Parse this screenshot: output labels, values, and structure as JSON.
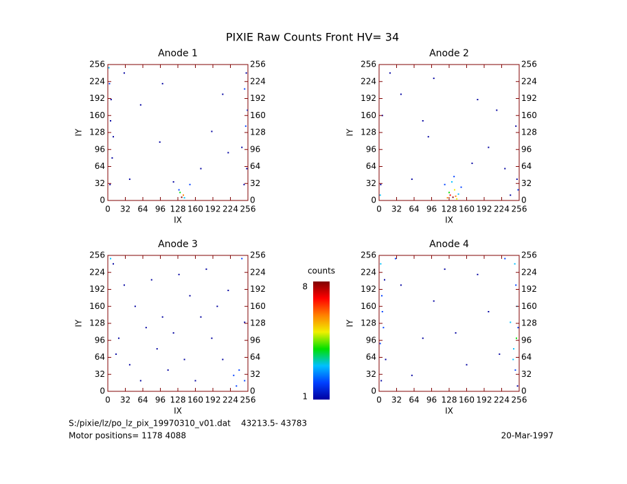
{
  "title": "PIXIE Raw Counts Front HV= 34",
  "chart_data": [
    {
      "type": "scatter",
      "title": "Anode 1",
      "xlabel": "IX",
      "ylabel": "IY",
      "xlim": [
        0,
        256
      ],
      "ylim": [
        0,
        256
      ],
      "xticks": [
        0,
        32,
        64,
        96,
        128,
        160,
        192,
        224,
        256
      ],
      "yticks": [
        0,
        32,
        64,
        96,
        128,
        160,
        192,
        224,
        256
      ],
      "x": [
        3,
        5,
        8,
        4,
        6,
        250,
        252,
        254,
        249,
        253,
        135,
        138,
        132,
        140,
        130,
        60,
        100,
        190,
        220,
        40,
        170,
        95,
        210,
        30,
        120,
        10,
        245,
        2,
        255,
        150
      ],
      "y": [
        220,
        150,
        80,
        30,
        190,
        210,
        140,
        60,
        30,
        240,
        6,
        10,
        15,
        5,
        20,
        180,
        220,
        130,
        90,
        40,
        60,
        110,
        200,
        240,
        35,
        120,
        100,
        250,
        170,
        30
      ],
      "values": [
        2,
        1,
        1,
        1,
        1,
        2,
        2,
        1,
        1,
        1,
        8,
        6,
        4,
        3,
        2,
        1,
        1,
        1,
        1,
        1,
        1,
        1,
        1,
        1,
        1,
        1,
        1,
        3,
        2,
        2
      ]
    },
    {
      "type": "scatter",
      "title": "Anode 2",
      "xlabel": "IX",
      "ylabel": "IY",
      "xlim": [
        0,
        256
      ],
      "ylim": [
        0,
        256
      ],
      "xticks": [
        0,
        32,
        64,
        96,
        128,
        160,
        192,
        224,
        256
      ],
      "yticks": [
        0,
        32,
        64,
        96,
        128,
        160,
        192,
        224,
        256
      ],
      "x": [
        3,
        6,
        252,
        250,
        135,
        130,
        140,
        138,
        128,
        145,
        133,
        150,
        120,
        40,
        80,
        200,
        230,
        100,
        60,
        180,
        20,
        240,
        170,
        90,
        215,
        137,
        125,
        142,
        2,
        254
      ],
      "y": [
        30,
        160,
        40,
        140,
        6,
        10,
        8,
        20,
        15,
        12,
        35,
        25,
        30,
        200,
        150,
        100,
        60,
        230,
        40,
        190,
        240,
        10,
        70,
        120,
        170,
        45,
        5,
        3,
        10,
        20
      ],
      "values": [
        1,
        1,
        1,
        1,
        8,
        7,
        6,
        5,
        4,
        3,
        3,
        2,
        2,
        1,
        1,
        1,
        1,
        1,
        1,
        1,
        1,
        1,
        1,
        1,
        1,
        2,
        6,
        5,
        3,
        2
      ]
    },
    {
      "type": "scatter",
      "title": "Anode 3",
      "xlabel": "IX",
      "ylabel": "IY",
      "xlim": [
        0,
        256
      ],
      "ylim": [
        0,
        256
      ],
      "xticks": [
        0,
        32,
        64,
        96,
        128,
        160,
        192,
        224,
        256
      ],
      "yticks": [
        0,
        32,
        64,
        96,
        128,
        160,
        192,
        224,
        256
      ],
      "x": [
        10,
        30,
        50,
        70,
        90,
        110,
        130,
        150,
        170,
        190,
        210,
        230,
        250,
        20,
        60,
        100,
        140,
        180,
        220,
        245,
        40,
        80,
        120,
        160,
        200,
        240,
        15,
        235,
        250,
        5
      ],
      "y": [
        240,
        200,
        160,
        120,
        80,
        40,
        220,
        180,
        140,
        100,
        60,
        30,
        20,
        100,
        20,
        140,
        60,
        230,
        190,
        250,
        50,
        210,
        110,
        20,
        160,
        40,
        70,
        10,
        130,
        250
      ],
      "values": [
        1,
        1,
        1,
        1,
        1,
        1,
        1,
        1,
        1,
        1,
        1,
        2,
        2,
        1,
        1,
        1,
        1,
        1,
        1,
        2,
        1,
        1,
        1,
        1,
        1,
        2,
        1,
        2,
        1,
        3
      ]
    },
    {
      "type": "scatter",
      "title": "Anode 4",
      "xlabel": "IX",
      "ylabel": "IY",
      "xlim": [
        0,
        256
      ],
      "ylim": [
        0,
        256
      ],
      "xticks": [
        0,
        32,
        64,
        96,
        128,
        160,
        192,
        224,
        256
      ],
      "yticks": [
        0,
        32,
        64,
        96,
        128,
        160,
        192,
        224,
        256
      ],
      "x": [
        3,
        5,
        8,
        12,
        4,
        6,
        248,
        250,
        252,
        254,
        246,
        249,
        251,
        253,
        40,
        80,
        120,
        160,
        200,
        60,
        100,
        140,
        180,
        220,
        30,
        240,
        245,
        2,
        10,
        230
      ],
      "y": [
        240,
        180,
        120,
        60,
        20,
        150,
        240,
        200,
        160,
        120,
        80,
        40,
        100,
        10,
        200,
        100,
        230,
        50,
        150,
        30,
        170,
        110,
        220,
        70,
        250,
        130,
        60,
        90,
        210,
        250
      ],
      "values": [
        3,
        2,
        2,
        1,
        1,
        2,
        3,
        2,
        3,
        2,
        3,
        2,
        4,
        1,
        1,
        1,
        1,
        1,
        1,
        1,
        1,
        1,
        1,
        1,
        2,
        3,
        3,
        2,
        1,
        2
      ]
    }
  ],
  "colorbar": {
    "label": "counts",
    "clim": [
      1,
      8
    ],
    "ticks": [
      1,
      8
    ],
    "colormap": [
      "#0000a0",
      "#0040ff",
      "#00c0ff",
      "#00e000",
      "#f0f000",
      "#ff8000",
      "#ff0000",
      "#800000"
    ]
  },
  "footer": {
    "file": "S:/pixie/lz/po_lz_pix_19970310_v01.dat    43213.5- 43783",
    "motor": "Motor positions= 1178 4088",
    "date": "20-Mar-1997"
  }
}
